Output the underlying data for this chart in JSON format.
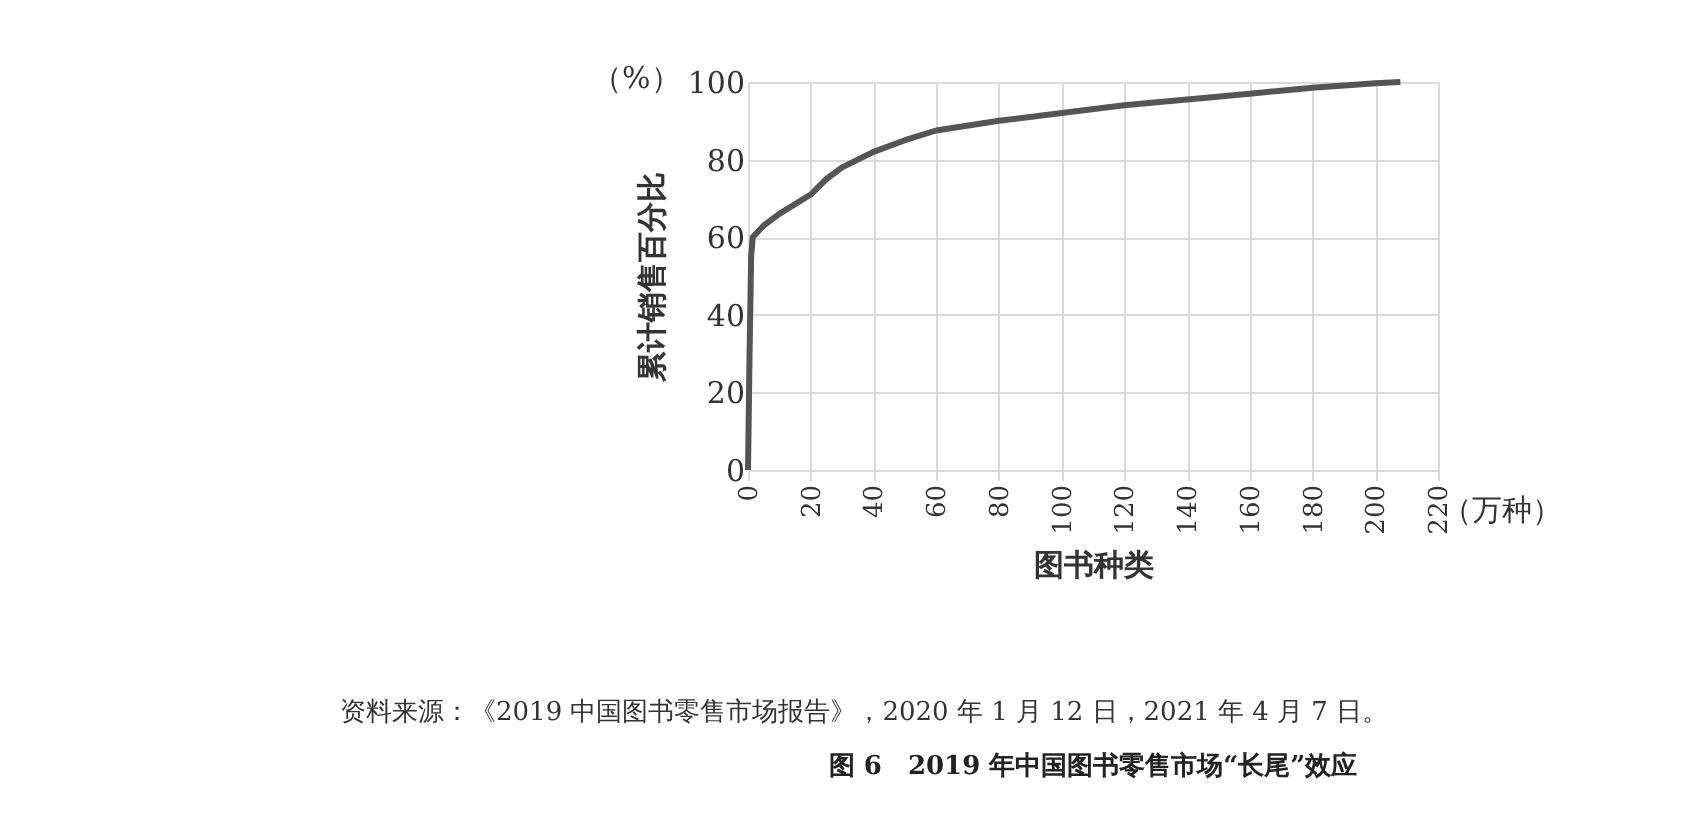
{
  "chart_data": {
    "type": "line",
    "title": "图 6　2019 年中国图书零售市场“长尾”效应",
    "xlabel": "图书种类",
    "ylabel": "累计销售百分比",
    "annotations": [
      "（%）",
      "（万种）",
      "资料来源：《2019 中国图书零售市场报告》，2020 年 1 月 12 日，2021 年 4 月 7 日。"
    ],
    "x": [
      0,
      0.5,
      1,
      1.5,
      5,
      10,
      20,
      25,
      30,
      40,
      50,
      60,
      80,
      100,
      120,
      140,
      160,
      180,
      200,
      208
    ],
    "series": [
      {
        "color": "#555555",
        "values": [
          0,
          30,
          55,
          60,
          63,
          66,
          71,
          75,
          78,
          82,
          85,
          87.5,
          90,
          92,
          94,
          95.5,
          97,
          98.5,
          99.7,
          100
        ]
      }
    ],
    "xlim": [
      0,
      220
    ],
    "xticks": [
      0,
      20,
      40,
      60,
      80,
      100,
      120,
      140,
      160,
      180,
      200,
      220
    ],
    "ylim": [
      0,
      100
    ],
    "yticks": [
      0,
      20,
      40,
      60,
      80,
      100
    ],
    "grid": true,
    "marker": "none",
    "line_style": "solid"
  }
}
